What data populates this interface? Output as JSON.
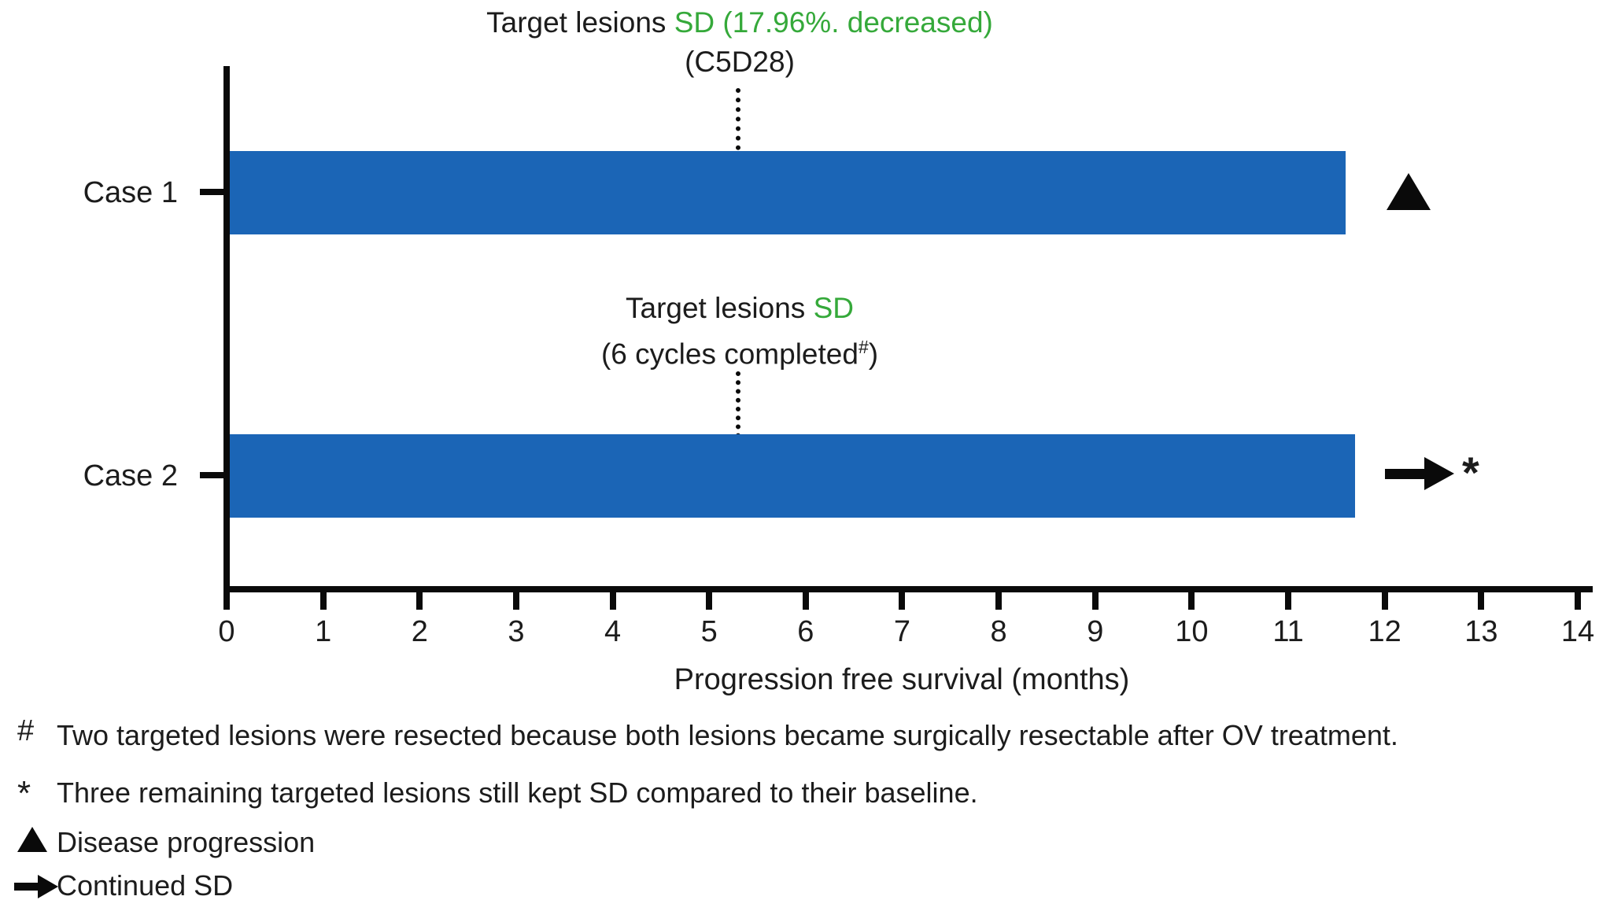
{
  "chart_data": {
    "type": "bar",
    "orientation": "horizontal",
    "title": "",
    "categories": [
      "Case 1",
      "Case 2"
    ],
    "values": [
      11.6,
      11.7
    ],
    "value_unit": "months",
    "xlabel": "Progression free survival (months)",
    "xlim": [
      0,
      14
    ],
    "xticks": [
      0,
      1,
      2,
      3,
      4,
      5,
      6,
      7,
      8,
      9,
      10,
      11,
      12,
      13,
      14
    ],
    "grid": false,
    "bar_color": "#1b65b6",
    "highlight_color": "#35a93a",
    "annotations": [
      {
        "case": "Case 1",
        "line1_prefix": "Target lesions ",
        "line1_highlight": "SD (17.96%. decreased)",
        "line2": "(C5D28)",
        "event_month": 5.3,
        "end_marker": "disease-progression-triangle"
      },
      {
        "case": "Case 2",
        "line1_prefix": "Target lesions ",
        "line1_highlight": "SD",
        "line2_prefix": "(6 cycles completed",
        "line2_sup": "#",
        "line2_suffix": ")",
        "event_month": 5.3,
        "end_marker": "continued-sd-arrow",
        "end_marker_note": "*"
      }
    ]
  },
  "footnotes": [
    {
      "symbol": "#",
      "text": "Two targeted lesions were resected because both lesions became surgically resectable after OV treatment."
    },
    {
      "symbol": "*",
      "text": "Three remaining targeted lesions still kept SD compared to their baseline."
    }
  ],
  "legend": [
    {
      "symbol": "triangle-icon",
      "label": "Disease progression"
    },
    {
      "symbol": "arrow-icon",
      "label": "Continued SD"
    }
  ]
}
